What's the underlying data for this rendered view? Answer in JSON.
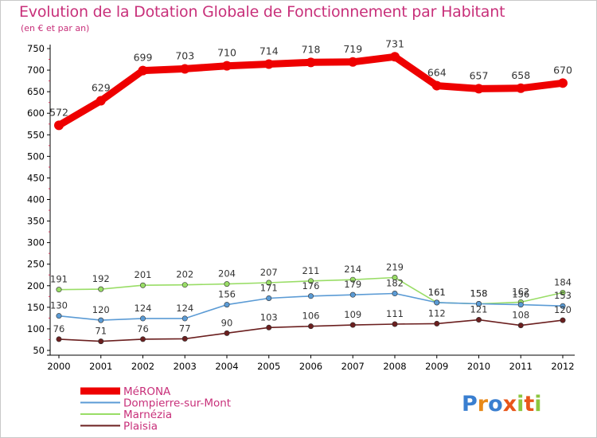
{
  "title": "Evolution de la Dotation Globale de Fonctionnement par Habitant",
  "subtitle": "(en € et par an)",
  "brand": "Proxiti",
  "chart_data": {
    "type": "line",
    "x": [
      "2000",
      "2001",
      "2002",
      "2003",
      "2004",
      "2005",
      "2006",
      "2007",
      "2008",
      "2009",
      "2010",
      "2011",
      "2012"
    ],
    "ylim": [
      50,
      750
    ],
    "yticks": [
      50,
      100,
      150,
      200,
      250,
      300,
      350,
      400,
      450,
      500,
      550,
      600,
      650,
      700,
      750
    ],
    "grid": false,
    "legend_position": "bottom-left",
    "series": [
      {
        "name": "MéRONA",
        "color": "#ee0000",
        "values": [
          572,
          629,
          699,
          703,
          710,
          714,
          718,
          719,
          731,
          664,
          657,
          658,
          670
        ]
      },
      {
        "name": "Dompierre-sur-Mont",
        "color": "#5b9bd5",
        "values": [
          130,
          120,
          124,
          124,
          156,
          171,
          176,
          179,
          182,
          161,
          158,
          156,
          153
        ]
      },
      {
        "name": "Marnézia",
        "color": "#99dd66",
        "values": [
          191,
          192,
          201,
          202,
          204,
          207,
          211,
          214,
          219,
          161,
          158,
          162,
          184
        ]
      },
      {
        "name": "Plaisia",
        "color": "#6b1f1f",
        "values": [
          76,
          71,
          76,
          77,
          90,
          103,
          106,
          109,
          111,
          112,
          121,
          108,
          120
        ]
      }
    ]
  }
}
